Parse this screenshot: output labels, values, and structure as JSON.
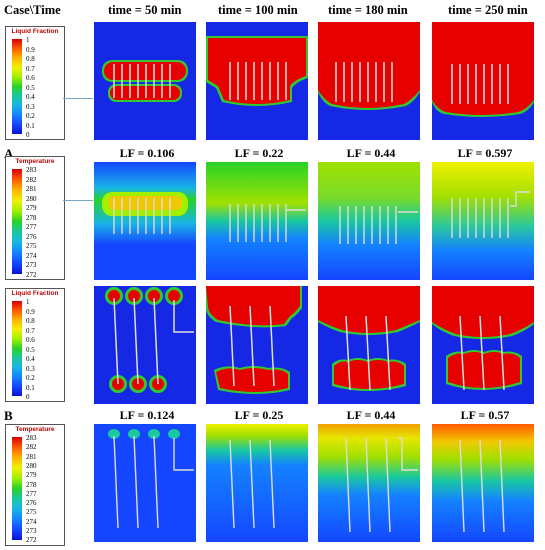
{
  "header": {
    "corner": "Case\\Time",
    "times": [
      "time = 50 min",
      "time = 100 min",
      "time = 180 min",
      "time = 250 min"
    ]
  },
  "cases": [
    {
      "label": "A",
      "lf_values": [
        "LF = 0.106",
        "LF = 0.22",
        "LF = 0.44",
        "LF = 0.597"
      ],
      "liquid_legend": {
        "title": "Liquid Fraction",
        "ticks": [
          "1",
          "0.9",
          "0.8",
          "0.7",
          "0.6",
          "0.5",
          "0.4",
          "0.3",
          "0.2",
          "0.1",
          "0"
        ]
      },
      "temp_legend": {
        "title": "Temperature",
        "ticks": [
          "283",
          "282",
          "281",
          "280",
          "279",
          "278",
          "277",
          "276",
          "275",
          "274",
          "273",
          "272"
        ]
      }
    },
    {
      "label": "B",
      "lf_values": [
        "LF = 0.124",
        "LF = 0.25",
        "LF = 0.44",
        "LF = 0.57"
      ],
      "liquid_legend": {
        "title": "Liquid Fraction",
        "ticks": [
          "1",
          "0.9",
          "0.8",
          "0.7",
          "0.6",
          "0.5",
          "0.4",
          "0.3",
          "0.2",
          "0.1",
          "0"
        ]
      },
      "temp_legend": {
        "title": "Temperature",
        "ticks": [
          "283",
          "282",
          "281",
          "280",
          "279",
          "278",
          "277",
          "276",
          "275",
          "274",
          "273",
          "272"
        ]
      }
    }
  ],
  "colors": {
    "cold_blue": "#1428e6",
    "melt_red": "#e60000",
    "border_green": "#32c832",
    "border_yellow": "#e6e600",
    "label_red": "#c00000"
  }
}
